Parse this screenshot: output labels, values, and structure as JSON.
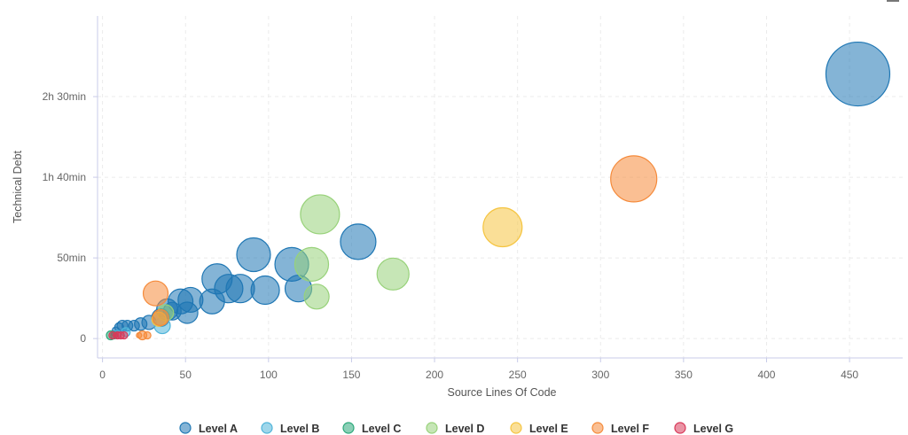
{
  "chart_data": {
    "type": "scatter",
    "variant": "bubble",
    "xlabel": "Source Lines Of Code",
    "ylabel": "Technical Debt",
    "xlim": [
      -3,
      482
    ],
    "ylim": [
      -12,
      200
    ],
    "x_ticks": [
      {
        "value": 0,
        "label": "0"
      },
      {
        "value": 50,
        "label": "50"
      },
      {
        "value": 100,
        "label": "100"
      },
      {
        "value": 150,
        "label": "150"
      },
      {
        "value": 200,
        "label": "200"
      },
      {
        "value": 250,
        "label": "250"
      },
      {
        "value": 300,
        "label": "300"
      },
      {
        "value": 350,
        "label": "350"
      },
      {
        "value": 400,
        "label": "400"
      },
      {
        "value": 450,
        "label": "450"
      }
    ],
    "y_ticks": [
      {
        "value": 0,
        "label": "0"
      },
      {
        "value": 50,
        "label": "50min"
      },
      {
        "value": 100,
        "label": "1h 40min"
      },
      {
        "value": 150,
        "label": "2h 30min"
      }
    ],
    "grid": true,
    "legend_position": "bottom",
    "series": [
      {
        "name": "Level A",
        "color": "#1f77b4",
        "points": [
          [
            455,
            164,
            36
          ],
          [
            154,
            60,
            20
          ],
          [
            91,
            52,
            19
          ],
          [
            114,
            46,
            19
          ],
          [
            69,
            37,
            17
          ],
          [
            76,
            31,
            16
          ],
          [
            83,
            31,
            16
          ],
          [
            98,
            30,
            16
          ],
          [
            118,
            31,
            15
          ],
          [
            47,
            23,
            14
          ],
          [
            53,
            24,
            14
          ],
          [
            66,
            23,
            14
          ],
          [
            51,
            16,
            12
          ],
          [
            39,
            18,
            12
          ],
          [
            35,
            13,
            10
          ],
          [
            42,
            17,
            10
          ],
          [
            28,
            10,
            8
          ],
          [
            23,
            9,
            7
          ],
          [
            19,
            8,
            6
          ],
          [
            15,
            8,
            6
          ],
          [
            12,
            8,
            6
          ],
          [
            10,
            7,
            5
          ],
          [
            8,
            5,
            4
          ],
          [
            7,
            3,
            3
          ]
        ]
      },
      {
        "name": "Level B",
        "color": "#4fb4d9",
        "points": [
          [
            36,
            8,
            9
          ],
          [
            14,
            4,
            5
          ],
          [
            9,
            3,
            4
          ]
        ]
      },
      {
        "name": "Level C",
        "color": "#2ca87a",
        "points": [
          [
            5,
            2,
            5
          ],
          [
            7,
            2,
            4
          ]
        ]
      },
      {
        "name": "Level D",
        "color": "#98d27a",
        "points": [
          [
            131,
            77,
            22
          ],
          [
            126,
            46,
            19
          ],
          [
            175,
            40,
            18
          ],
          [
            129,
            26,
            14
          ],
          [
            38,
            16,
            9
          ]
        ]
      },
      {
        "name": "Level E",
        "color": "#f5c542",
        "points": [
          [
            241,
            69,
            22
          ],
          [
            34,
            12,
            8
          ]
        ]
      },
      {
        "name": "Level F",
        "color": "#f58a3a",
        "points": [
          [
            320,
            99,
            26
          ],
          [
            32,
            28,
            14
          ],
          [
            35,
            13,
            9
          ],
          [
            24,
            2,
            5
          ],
          [
            27,
            2,
            4
          ],
          [
            22,
            2,
            3
          ]
        ]
      },
      {
        "name": "Level G",
        "color": "#d83a5a",
        "points": [
          [
            6,
            2,
            4
          ],
          [
            9,
            2,
            4
          ],
          [
            11,
            2,
            4
          ],
          [
            13,
            2,
            4
          ],
          [
            8,
            2,
            3
          ]
        ]
      }
    ]
  }
}
